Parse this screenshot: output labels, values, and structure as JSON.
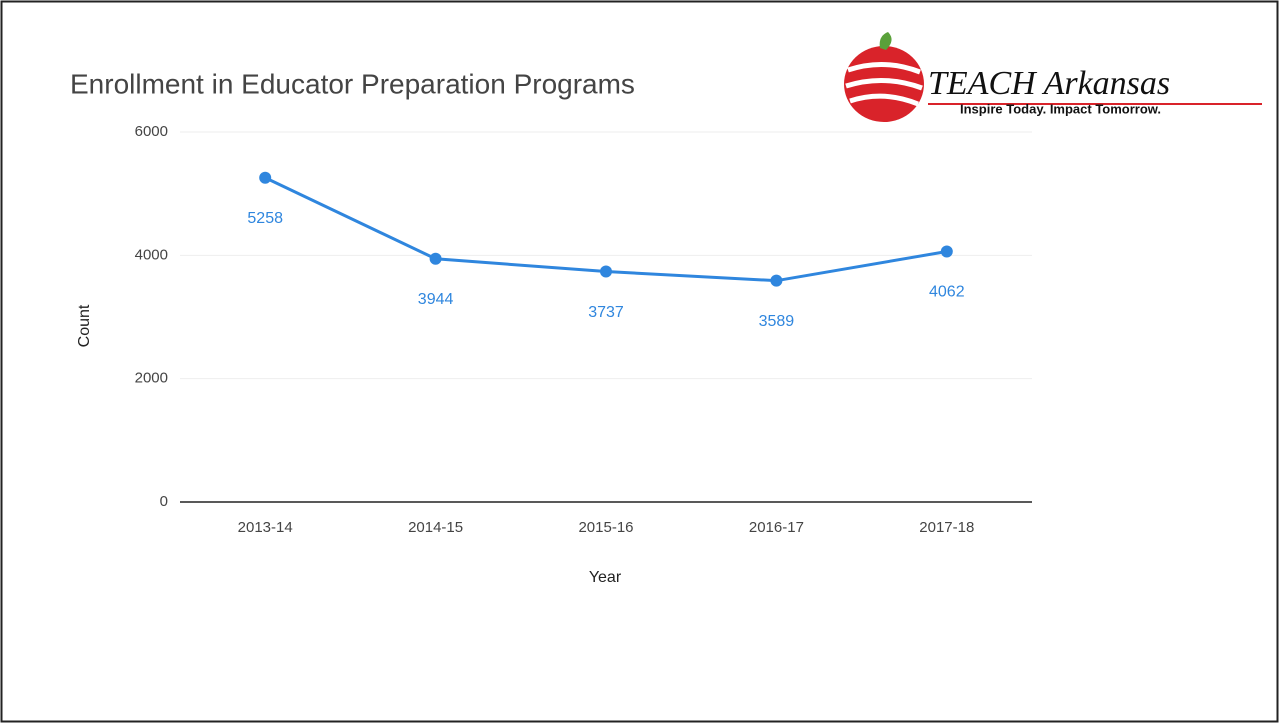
{
  "chart_data": {
    "type": "line",
    "title": "Enrollment in Educator Preparation Programs",
    "x_label": "Year",
    "y_label": "Count",
    "categories": [
      "2013-14",
      "2014-15",
      "2015-16",
      "2016-17",
      "2017-18"
    ],
    "series": [
      {
        "name": "Count",
        "color": "#2f86de",
        "values": [
          5258,
          3944,
          3737,
          3589,
          4062
        ]
      }
    ],
    "ylim": [
      0,
      6000
    ],
    "yticks": [
      0,
      2000,
      4000,
      6000
    ],
    "grid": true
  },
  "logo": {
    "title": "TEACH Arkansas",
    "tagline": "Inspire Today. Impact Tomorrow."
  }
}
